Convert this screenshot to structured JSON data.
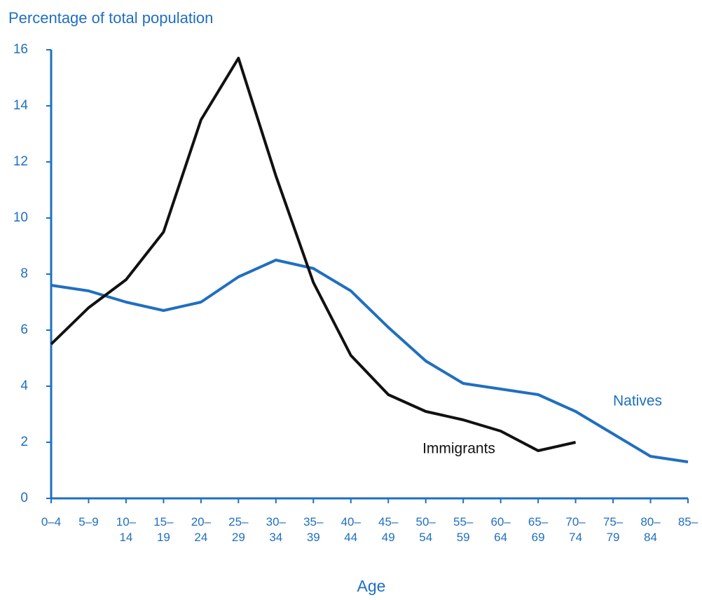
{
  "chart_data": {
    "type": "line",
    "title": "Percentage of total population",
    "x_label": "Age",
    "categories": [
      "0–4",
      "5–9",
      "10–14",
      "15–19",
      "20–24",
      "25–29",
      "30–34",
      "35–39",
      "40–44",
      "45–49",
      "50–54",
      "55–59",
      "60–64",
      "65–69",
      "70–74",
      "75–79",
      "80–84",
      "85–"
    ],
    "series": [
      {
        "name": "Natives",
        "color": "#1f6fc0",
        "values": [
          7.6,
          7.4,
          7.0,
          6.7,
          7.0,
          7.9,
          8.5,
          8.2,
          7.4,
          6.1,
          4.9,
          4.1,
          3.9,
          3.7,
          3.1,
          2.3,
          1.5,
          1.3
        ]
      },
      {
        "name": "Immigrants",
        "color": "#111111",
        "values": [
          5.5,
          6.8,
          7.8,
          9.5,
          13.5,
          15.7,
          11.5,
          7.7,
          5.1,
          3.7,
          3.1,
          2.8,
          2.4,
          1.7,
          2.0,
          null,
          null,
          null
        ]
      }
    ],
    "ylim": [
      0,
      16
    ],
    "yticks": [
      0,
      2,
      4,
      6,
      8,
      10,
      12,
      14,
      16
    ],
    "grid": false,
    "axis_color": "#1f6fc0"
  }
}
